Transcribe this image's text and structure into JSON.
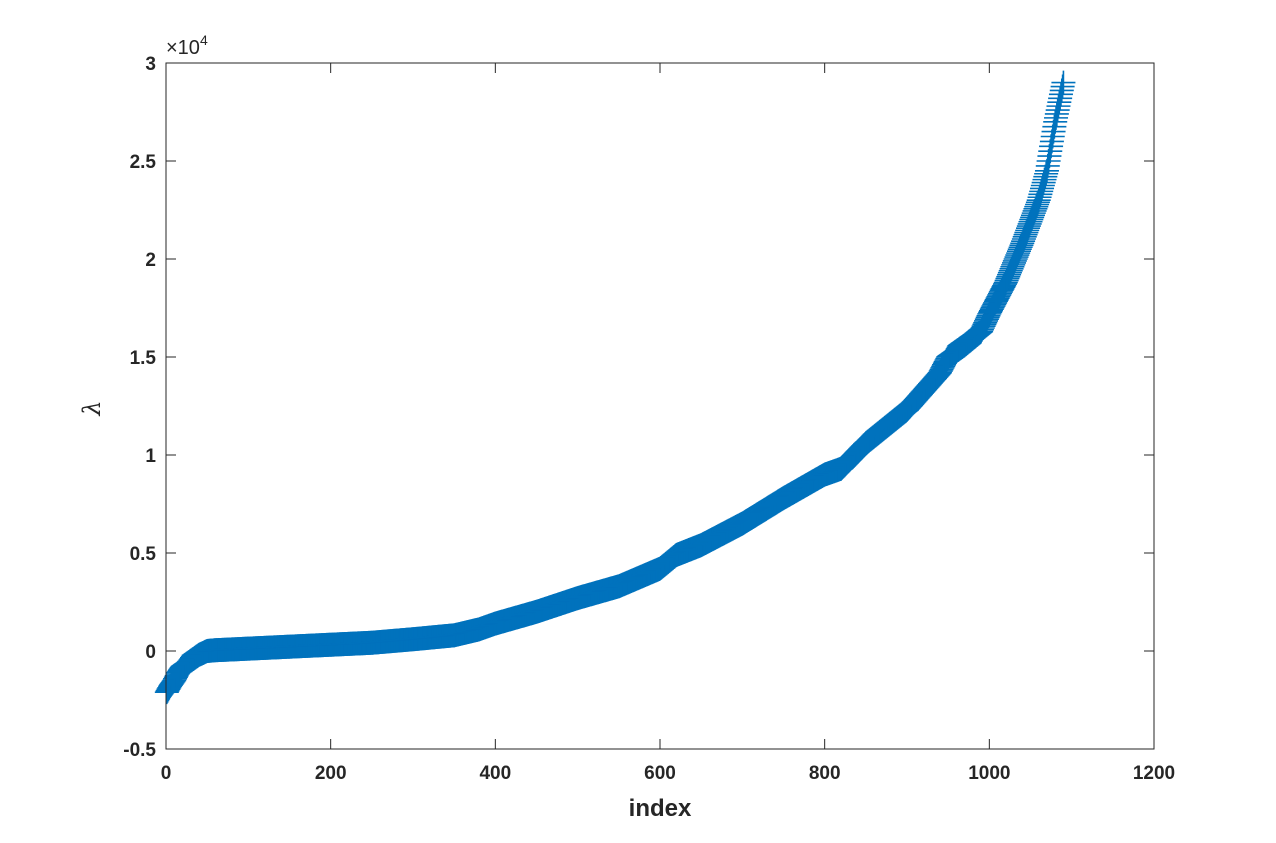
{
  "chart_data": {
    "type": "scatter",
    "marker": "+",
    "title": "",
    "xlabel": "index",
    "ylabel": "λ",
    "xlim": [
      0,
      1200
    ],
    "ylim": [
      -5000,
      30000
    ],
    "x_ticks": [
      0,
      200,
      400,
      600,
      800,
      1000,
      1200
    ],
    "x_tick_labels": [
      "0",
      "200",
      "400",
      "600",
      "800",
      "1000",
      "1200"
    ],
    "y_ticks": [
      -5000,
      0,
      5000,
      10000,
      15000,
      20000,
      25000,
      30000
    ],
    "y_tick_labels": [
      "-0.5",
      "0",
      "0.5",
      "1",
      "1.5",
      "2",
      "2.5",
      "3"
    ],
    "y_exponent_label": {
      "base": "×10",
      "power": "4"
    },
    "grid": false,
    "series_color": "#0072BD",
    "point_count": 1090,
    "curve_points": [
      [
        1,
        -2100
      ],
      [
        5,
        -1800
      ],
      [
        10,
        -1500
      ],
      [
        15,
        -1100
      ],
      [
        20,
        -800
      ],
      [
        25,
        -650
      ],
      [
        30,
        -500
      ],
      [
        40,
        -200
      ],
      [
        50,
        0
      ],
      [
        60,
        40
      ],
      [
        80,
        80
      ],
      [
        100,
        120
      ],
      [
        150,
        220
      ],
      [
        200,
        320
      ],
      [
        250,
        420
      ],
      [
        300,
        600
      ],
      [
        350,
        800
      ],
      [
        380,
        1100
      ],
      [
        400,
        1400
      ],
      [
        450,
        2000
      ],
      [
        500,
        2700
      ],
      [
        550,
        3300
      ],
      [
        600,
        4200
      ],
      [
        620,
        4900
      ],
      [
        650,
        5400
      ],
      [
        700,
        6500
      ],
      [
        750,
        7800
      ],
      [
        800,
        9000
      ],
      [
        820,
        9300
      ],
      [
        850,
        10600
      ],
      [
        900,
        12300
      ],
      [
        940,
        14200
      ],
      [
        950,
        15000
      ],
      [
        970,
        15600
      ],
      [
        990,
        16300
      ],
      [
        1000,
        17200
      ],
      [
        1020,
        18800
      ],
      [
        1040,
        20800
      ],
      [
        1060,
        23000
      ],
      [
        1070,
        24500
      ],
      [
        1080,
        27000
      ],
      [
        1090,
        29000
      ]
    ]
  }
}
